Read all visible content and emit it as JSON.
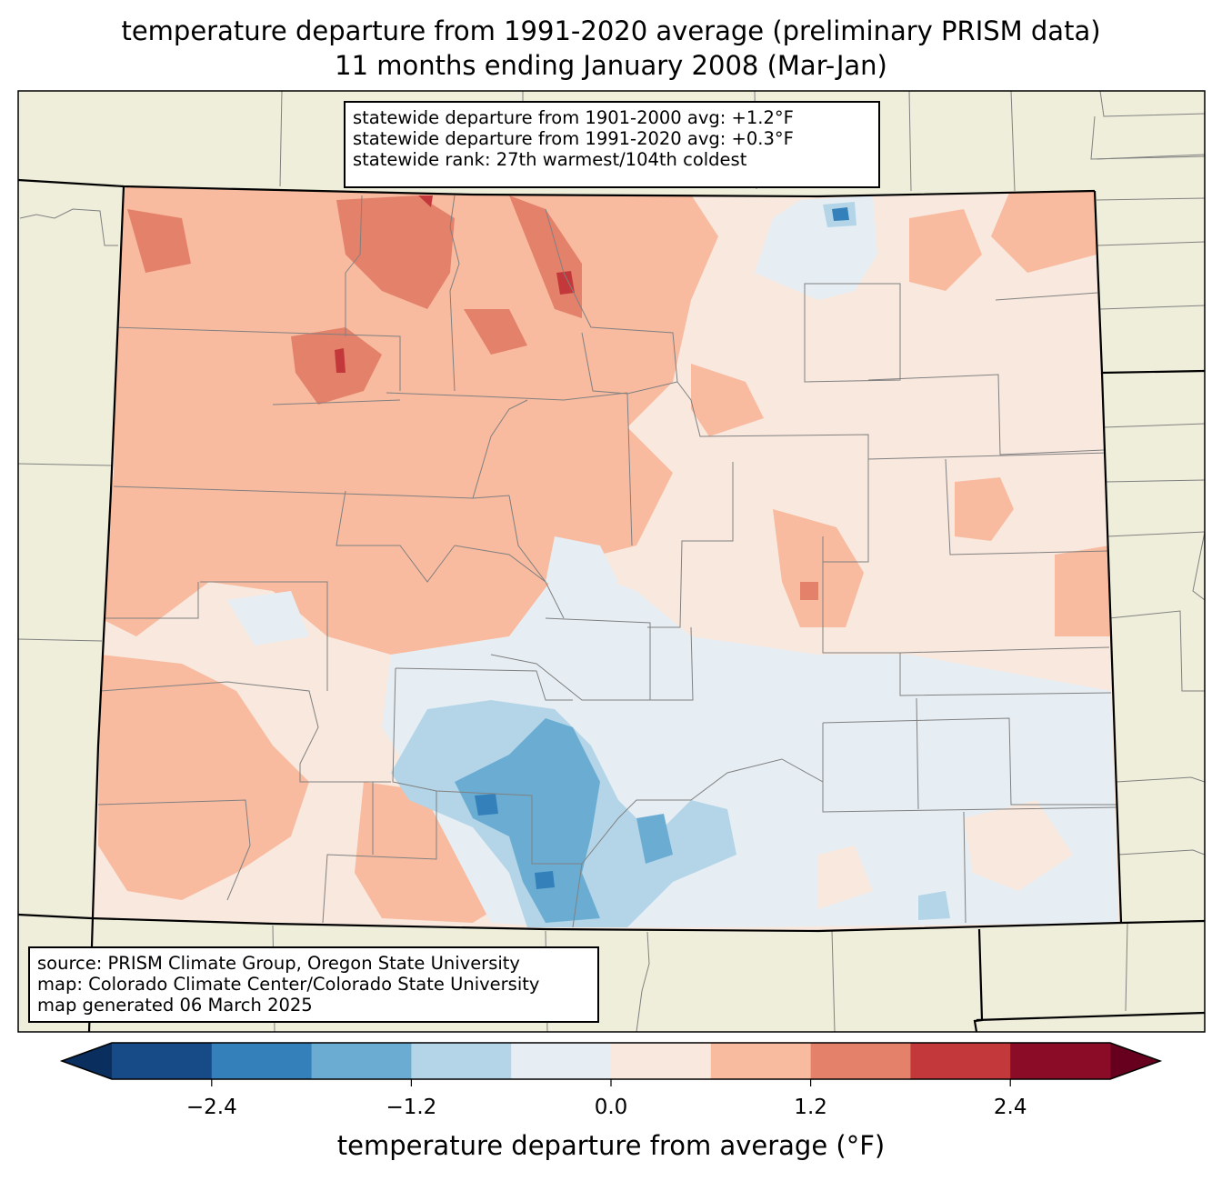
{
  "title": {
    "line1": "temperature departure from 1991-2020 average (preliminary PRISM data)",
    "line2": "11 months ending January 2008 (Mar-Jan)"
  },
  "stats_box": {
    "line1": "statewide departure from 1901-2000 avg: +1.2°F",
    "line2": "statewide departure from 1991-2020 avg: +0.3°F",
    "line3": "statewide rank: 27th warmest/104th coldest"
  },
  "credits_box": {
    "line1": "source: PRISM Climate Group, Oregon State University",
    "line2": "map: Colorado Climate Center/Colorado State University",
    "line3": "map generated 06 March 2025"
  },
  "colors": {
    "background_land": "#efeedb",
    "county_line": "#808080",
    "state_line": "#000000"
  },
  "colorbar": {
    "title": "temperature departure from average (°F)",
    "ticks": [
      "−2.4",
      "−1.2",
      "0.0",
      "1.2",
      "2.4"
    ],
    "tick_values": [
      -2.4,
      -1.2,
      0.0,
      1.2,
      2.4
    ],
    "bins": [
      -3.0,
      -2.4,
      -1.8,
      -1.2,
      -0.6,
      0.0,
      0.6,
      1.2,
      1.8,
      2.4,
      3.0
    ],
    "bin_colors": [
      "#164b87",
      "#3480bb",
      "#6badd2",
      "#b3d5e7",
      "#e6eef4",
      "#f9e8de",
      "#f8bba0",
      "#e4816a",
      "#c3393b",
      "#8a0c27"
    ],
    "under_color": "#0a2e5e",
    "over_color": "#67001f"
  }
}
